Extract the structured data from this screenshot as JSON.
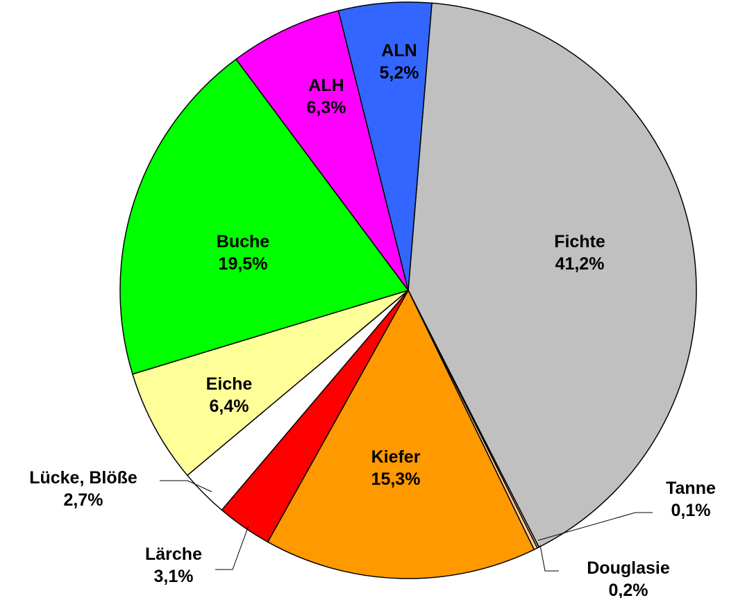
{
  "chart_data": {
    "type": "pie",
    "categories": [
      "Fichte",
      "Tanne",
      "Douglasie",
      "Kiefer",
      "Lärche",
      "Lücke, Blöße",
      "Eiche",
      "Buche",
      "ALH",
      "ALN"
    ],
    "values": [
      41.2,
      0.1,
      0.2,
      15.3,
      3.1,
      2.7,
      6.4,
      19.5,
      6.3,
      5.2
    ],
    "value_labels": [
      "41,2%",
      "0,1%",
      "0,2%",
      "15,3%",
      "3,1%",
      "2,7%",
      "6,4%",
      "19,5%",
      "6,3%",
      "5,2%"
    ],
    "colors": [
      "#c0c0c0",
      "#ffcc99",
      "#ffcc99",
      "#ff9900",
      "#ff0000",
      "#ffffff",
      "#ffff99",
      "#00ff00",
      "#ff00ff",
      "#3366ff"
    ]
  }
}
